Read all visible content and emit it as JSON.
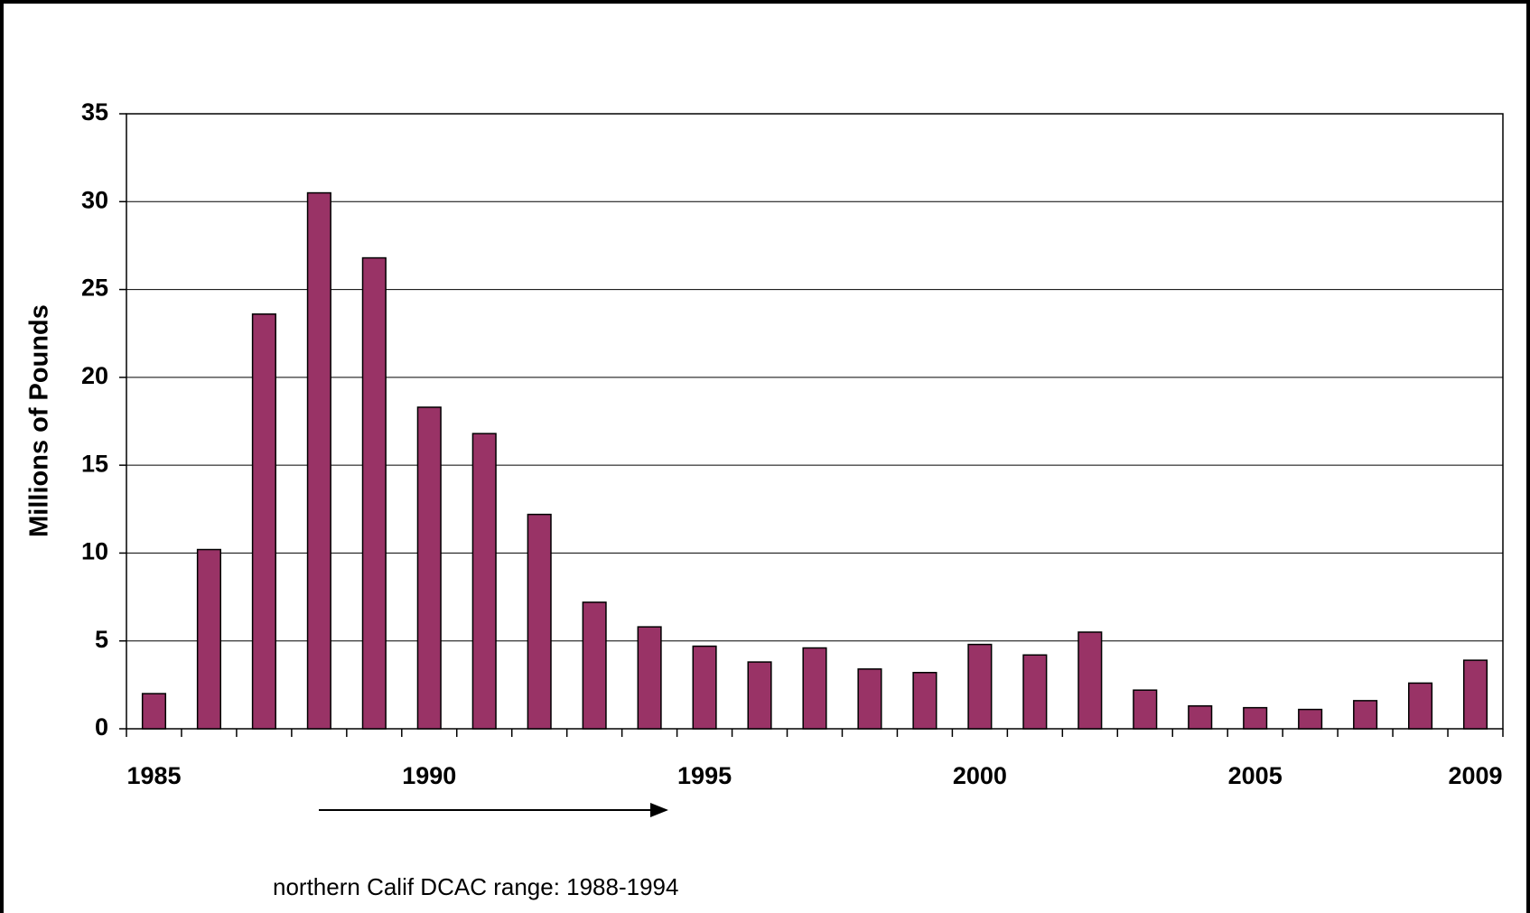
{
  "chart_data": {
    "type": "bar",
    "y_label": "Millions of Pounds",
    "annotation": "northern Calif DCAC range: 1988-1994",
    "categories": [
      "1985",
      null,
      null,
      null,
      null,
      "1990",
      null,
      null,
      null,
      null,
      "1995",
      null,
      null,
      null,
      null,
      "2000",
      null,
      null,
      null,
      null,
      "2005",
      null,
      null,
      null,
      "2009"
    ],
    "values": [
      2.0,
      10.2,
      23.6,
      30.5,
      26.8,
      18.3,
      16.8,
      12.2,
      7.2,
      5.8,
      4.7,
      3.8,
      4.6,
      3.4,
      3.2,
      4.8,
      4.2,
      5.5,
      2.2,
      1.3,
      1.2,
      1.1,
      1.6,
      2.6,
      3.9
    ],
    "color": "#993366",
    "ylim": [
      0,
      35
    ],
    "yticks": [
      0,
      5,
      10,
      15,
      20,
      25,
      30,
      35
    ],
    "grid": true
  }
}
